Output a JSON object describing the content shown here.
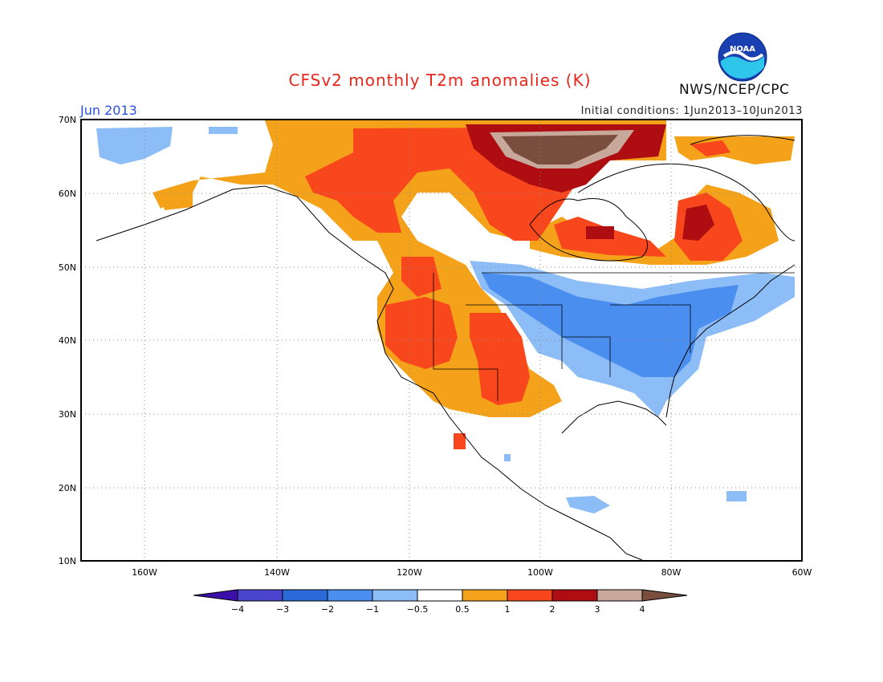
{
  "header": {
    "title": "CFSv2 monthly T2m anomalies (K)",
    "org": "NWS/NCEP/CPC",
    "logo_text": "NOAA",
    "month": "Jun 2013",
    "initial_conditions": "Initial conditions: 1Jun2013–10Jun2013"
  },
  "map": {
    "lon_range": [
      -172,
      -60
    ],
    "lat_range": [
      10,
      70
    ],
    "lat_labels": [
      "70N",
      "60N",
      "50N",
      "40N",
      "30N",
      "20N",
      "10N"
    ],
    "lon_labels": [
      "160W",
      "140W",
      "120W",
      "100W",
      "80W",
      "60W"
    ],
    "gridlines": "dotted"
  },
  "legend": {
    "labels": [
      "−4",
      "−3",
      "−2",
      "−1",
      "−0.5",
      "0.5",
      "1",
      "2",
      "3",
      "4"
    ],
    "colors": [
      "#3c10a8",
      "#4a44cc",
      "#2a6ad8",
      "#4a8ff0",
      "#8cbdf6",
      "#ffffff",
      "#f5a21b",
      "#f8471c",
      "#ae0d12",
      "#c8a89a",
      "#7a4e3e"
    ]
  },
  "anomaly_regions": [
    {
      "name": "Arctic Canada warm core",
      "level": "4",
      "color": "#7a4e3e"
    },
    {
      "name": "Hudson Bay / Quebec warm",
      "level": "2",
      "color": "#f8471c"
    },
    {
      "name": "Western US warm",
      "level": "1-2",
      "color": "#f8471c"
    },
    {
      "name": "Central / Eastern US cool",
      "level": "-1 to -2",
      "color": "#4a8ff0"
    },
    {
      "name": "Alaska cool",
      "level": "-1",
      "color": "#8cbdf6"
    }
  ]
}
